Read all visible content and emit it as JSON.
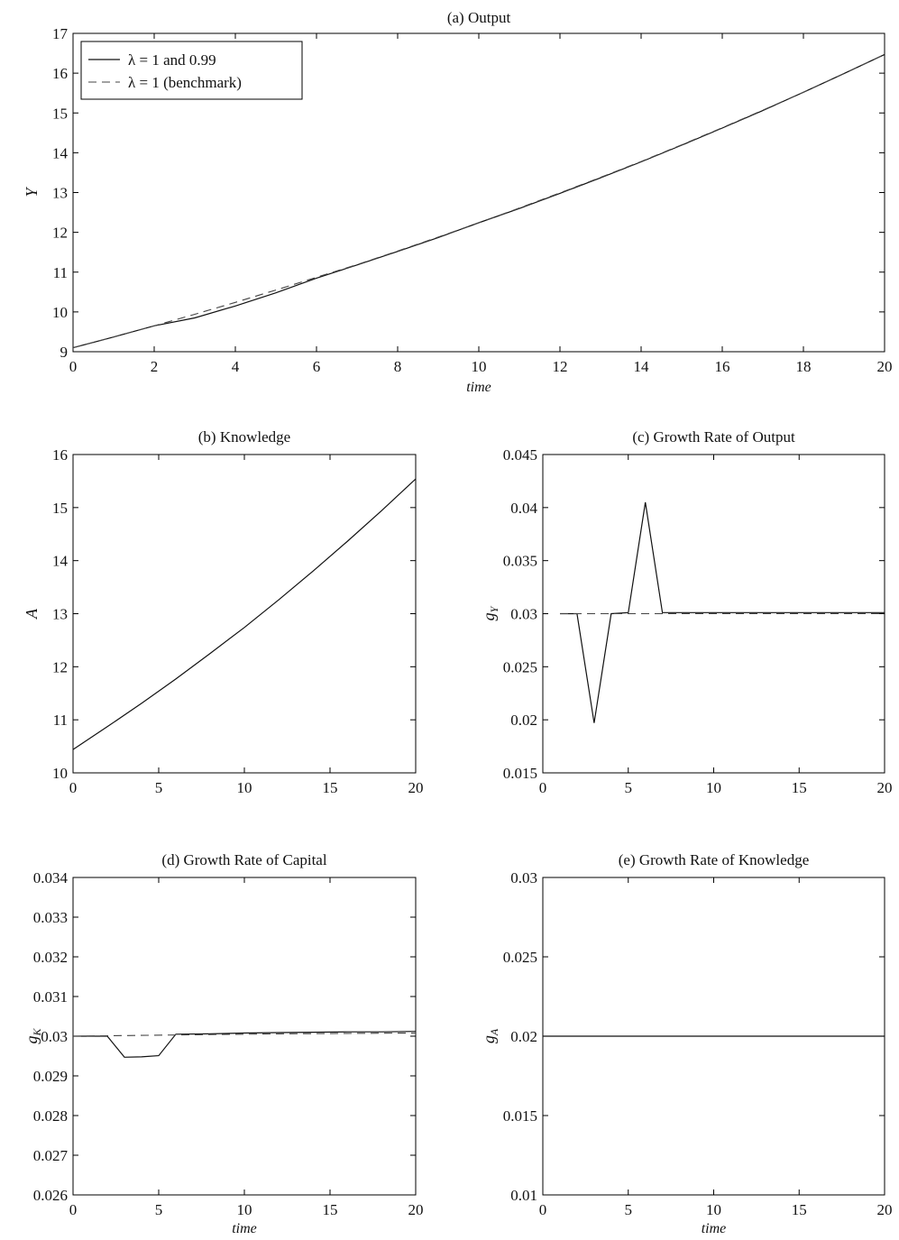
{
  "colors": {
    "axis": "#000000",
    "solid": "#111111",
    "dashed": "#444444"
  },
  "legend": {
    "placement": "top-left",
    "entries": [
      {
        "symbol": "λ",
        "text": "= 1 and 0.99",
        "style": "solid"
      },
      {
        "symbol": "λ",
        "text": "= 1 (benchmark)",
        "style": "dashed"
      }
    ]
  },
  "chart_data": [
    {
      "type": "line",
      "title": "(a) Output",
      "xlabel": "time",
      "ylabel": "Y",
      "ylabel_sub": "",
      "xlim": [
        0,
        20
      ],
      "ylim": [
        9,
        17
      ],
      "xticks": [
        0,
        2,
        4,
        6,
        8,
        10,
        12,
        14,
        16,
        18,
        20
      ],
      "yticks": [
        9,
        10,
        11,
        12,
        13,
        14,
        15,
        16,
        17
      ],
      "series": [
        {
          "style": "solid",
          "x": [
            0,
            1,
            2,
            3,
            4,
            5,
            6,
            7,
            8,
            9,
            10,
            11,
            12,
            13,
            14,
            15,
            16,
            17,
            18,
            19,
            20
          ],
          "y": [
            9.1,
            9.37,
            9.65,
            9.85,
            10.15,
            10.48,
            10.85,
            11.18,
            11.52,
            11.87,
            12.24,
            12.6,
            12.98,
            13.37,
            13.77,
            14.19,
            14.62,
            15.06,
            15.52,
            15.99,
            16.47
          ]
        },
        {
          "style": "dashed",
          "x": [
            0,
            1,
            2,
            3,
            4,
            5,
            6,
            7,
            8,
            9,
            10,
            11,
            12,
            13,
            14,
            15,
            16,
            17,
            18,
            19,
            20
          ],
          "y": [
            9.1,
            9.37,
            9.65,
            9.94,
            10.24,
            10.55,
            10.87,
            11.19,
            11.53,
            11.88,
            12.24,
            12.61,
            12.99,
            13.38,
            13.78,
            14.2,
            14.63,
            15.07,
            15.52,
            15.99,
            16.47
          ]
        }
      ]
    },
    {
      "type": "line",
      "title": "(b) Knowledge",
      "xlabel": "",
      "ylabel": "A",
      "ylabel_sub": "",
      "xlim": [
        0,
        20
      ],
      "ylim": [
        10,
        16
      ],
      "xticks": [
        0,
        5,
        10,
        15,
        20
      ],
      "yticks": [
        10,
        11,
        12,
        13,
        14,
        15,
        16
      ],
      "series": [
        {
          "style": "solid",
          "x": [
            0,
            2,
            4,
            6,
            8,
            10,
            12,
            14,
            16,
            18,
            20
          ],
          "y": [
            10.44,
            10.87,
            11.31,
            11.77,
            12.25,
            12.74,
            13.26,
            13.8,
            14.36,
            14.94,
            15.54
          ]
        }
      ]
    },
    {
      "type": "line",
      "title": "(c) Growth Rate of Output",
      "xlabel": "",
      "ylabel": "g",
      "ylabel_sub": "Y",
      "xlim": [
        0,
        20
      ],
      "ylim": [
        0.015,
        0.045
      ],
      "xticks": [
        0,
        5,
        10,
        15,
        20
      ],
      "yticks": [
        0.015,
        0.02,
        0.025,
        0.03,
        0.035,
        0.04,
        0.045
      ],
      "ytick_labels": [
        "0.015",
        "0.02",
        "0.025",
        "0.03",
        "0.035",
        "0.04",
        "0.045"
      ],
      "series": [
        {
          "style": "solid",
          "x": [
            1,
            2,
            3,
            4,
            5,
            6,
            7,
            20
          ],
          "y": [
            0.03,
            0.03,
            0.0197,
            0.03,
            0.0301,
            0.0405,
            0.0301,
            0.0301
          ]
        },
        {
          "style": "dashed",
          "x": [
            1,
            20
          ],
          "y": [
            0.03,
            0.03
          ]
        }
      ]
    },
    {
      "type": "line",
      "title": "(d) Growth Rate of Capital",
      "xlabel": "time",
      "ylabel": "g",
      "ylabel_sub": "K",
      "xlim": [
        0,
        20
      ],
      "ylim": [
        0.026,
        0.034
      ],
      "xticks": [
        0,
        5,
        10,
        15,
        20
      ],
      "yticks": [
        0.026,
        0.027,
        0.028,
        0.029,
        0.03,
        0.031,
        0.032,
        0.033,
        0.034
      ],
      "ytick_labels": [
        "0.026",
        "0.027",
        "0.028",
        "0.029",
        "0.03",
        "0.031",
        "0.032",
        "0.033",
        "0.034"
      ],
      "series": [
        {
          "style": "solid",
          "x": [
            0,
            2,
            3,
            4,
            5,
            6,
            8,
            10,
            12,
            14,
            16,
            18,
            20
          ],
          "y": [
            0.03,
            0.03,
            0.02947,
            0.02948,
            0.02951,
            0.03005,
            0.03006,
            0.03008,
            0.03009,
            0.0301,
            0.03011,
            0.03011,
            0.03012
          ]
        },
        {
          "style": "dashed",
          "x": [
            0,
            4,
            8,
            12,
            16,
            20
          ],
          "y": [
            0.03,
            0.03002,
            0.03004,
            0.03006,
            0.03007,
            0.03008
          ]
        }
      ]
    },
    {
      "type": "line",
      "title": "(e) Growth Rate of Knowledge",
      "xlabel": "time",
      "ylabel": "g",
      "ylabel_sub": "A",
      "xlim": [
        0,
        20
      ],
      "ylim": [
        0.01,
        0.03
      ],
      "xticks": [
        0,
        5,
        10,
        15,
        20
      ],
      "yticks": [
        0.01,
        0.015,
        0.02,
        0.025,
        0.03
      ],
      "ytick_labels": [
        "0.01",
        "0.015",
        "0.02",
        "0.025",
        "0.03"
      ],
      "series": [
        {
          "style": "solid",
          "x": [
            0,
            20
          ],
          "y": [
            0.02,
            0.02
          ]
        }
      ]
    }
  ]
}
